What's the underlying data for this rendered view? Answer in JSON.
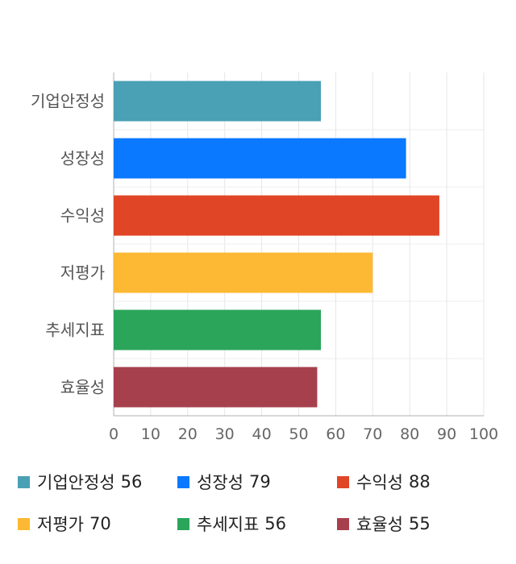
{
  "chart_data": {
    "type": "bar",
    "orientation": "horizontal",
    "categories": [
      "기업안정성",
      "성장성",
      "수익성",
      "저평가",
      "추세지표",
      "효율성"
    ],
    "values": [
      56,
      79,
      88,
      70,
      56,
      55
    ],
    "colors": [
      "#4aa0b5",
      "#0a78ff",
      "#e04526",
      "#fdb933",
      "#2aa55a",
      "#a7404d"
    ],
    "xlim": [
      0,
      100
    ],
    "xticks": [
      "0",
      "10",
      "20",
      "30",
      "40",
      "50",
      "60",
      "70",
      "80",
      "90",
      "100"
    ],
    "grid": true,
    "legend_position": "bottom"
  },
  "legend": {
    "items": [
      {
        "label": "기업안정성",
        "value": "56"
      },
      {
        "label": "성장성",
        "value": "79"
      },
      {
        "label": "수익성",
        "value": "88"
      },
      {
        "label": "저평가",
        "value": "70"
      },
      {
        "label": "추세지표",
        "value": "56"
      },
      {
        "label": "효율성",
        "value": "55"
      }
    ]
  }
}
